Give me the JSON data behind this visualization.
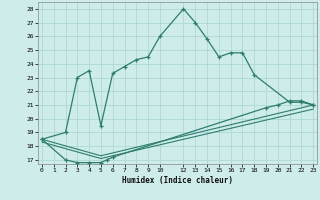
{
  "xlabel": "Humidex (Indice chaleur)",
  "bg_color": "#ceecea",
  "grid_color": "#aed8d4",
  "line_color": "#2e7d6e",
  "line1_x": [
    0,
    2,
    3,
    4,
    5,
    6,
    7,
    8,
    9,
    10,
    12,
    13,
    14,
    15,
    16,
    17,
    18,
    21,
    22,
    23
  ],
  "line1_y": [
    18.5,
    19.0,
    23.0,
    23.5,
    19.5,
    23.3,
    23.8,
    24.3,
    24.5,
    26.0,
    28.0,
    27.0,
    25.8,
    24.5,
    24.8,
    24.8,
    23.2,
    21.2,
    21.2,
    21.0
  ],
  "line2_x": [
    0,
    2,
    3,
    4,
    5,
    5.5,
    6,
    19,
    20,
    21,
    22,
    23
  ],
  "line2_y": [
    18.5,
    17.0,
    16.8,
    16.8,
    16.8,
    17.0,
    17.2,
    20.8,
    21.0,
    21.3,
    21.3,
    21.0
  ],
  "line3_x": [
    0,
    5,
    23
  ],
  "line3_y": [
    18.5,
    17.3,
    21.0
  ],
  "line4_x": [
    0,
    5,
    23
  ],
  "line4_y": [
    18.3,
    17.1,
    20.7
  ],
  "xlim": [
    -0.3,
    23.3
  ],
  "ylim": [
    16.7,
    28.5
  ],
  "yticks": [
    17,
    18,
    19,
    20,
    21,
    22,
    23,
    24,
    25,
    26,
    27,
    28
  ],
  "xticks": [
    0,
    1,
    2,
    3,
    4,
    5,
    6,
    7,
    8,
    9,
    10,
    12,
    13,
    14,
    15,
    16,
    17,
    18,
    19,
    20,
    21,
    22,
    23
  ]
}
